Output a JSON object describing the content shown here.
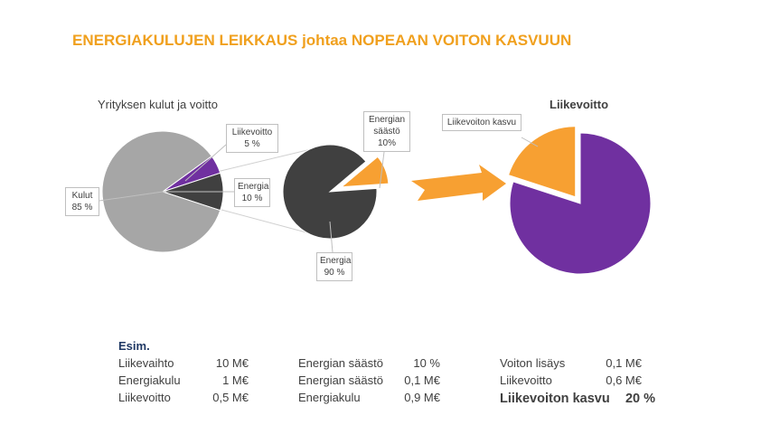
{
  "title": "ENERGIAKULUJEN LEIKKAUS johtaa NOPEAAN VOITON KASVUUN",
  "chart_data": [
    {
      "type": "pie",
      "title": "Yrityksen kulut ja voitto",
      "categories": [
        "Liikevoitto",
        "Energia",
        "Kulut"
      ],
      "values": [
        5,
        10,
        85
      ],
      "value_labels": [
        "5 %",
        "10 %",
        "85 %"
      ],
      "colors": [
        "#7030a0",
        "#404040",
        "#a6a6a6"
      ]
    },
    {
      "type": "pie",
      "categories": [
        "Energian säästö",
        "Energia"
      ],
      "values": [
        10,
        90
      ],
      "value_labels": [
        "10%",
        "90 %"
      ],
      "colors": [
        "#f7a032",
        "#404040"
      ]
    },
    {
      "type": "pie",
      "title": "Liikevoitto",
      "categories": [
        null,
        "Liikevoiton kasvu"
      ],
      "values": [
        80,
        20
      ],
      "colors": [
        "#7030a0",
        "#f7a032"
      ]
    }
  ],
  "example": {
    "heading": "Esim.",
    "columns": [
      [
        [
          "Liikevaihto",
          "10 M€"
        ],
        [
          "Energiakulu",
          "1 M€"
        ],
        [
          "Liikevoitto",
          "0,5 M€"
        ]
      ],
      [
        [
          "Energian säästö",
          "10 %"
        ],
        [
          "Energian säästö",
          "0,1 M€"
        ],
        [
          "Energiakulu",
          "0,9 M€"
        ]
      ],
      [
        [
          "Voiton lisäys",
          "0,1 M€"
        ],
        [
          "Liikevoitto",
          "0,6 M€"
        ],
        [
          "Liikevoiton kasvu",
          "20 %"
        ]
      ]
    ]
  }
}
